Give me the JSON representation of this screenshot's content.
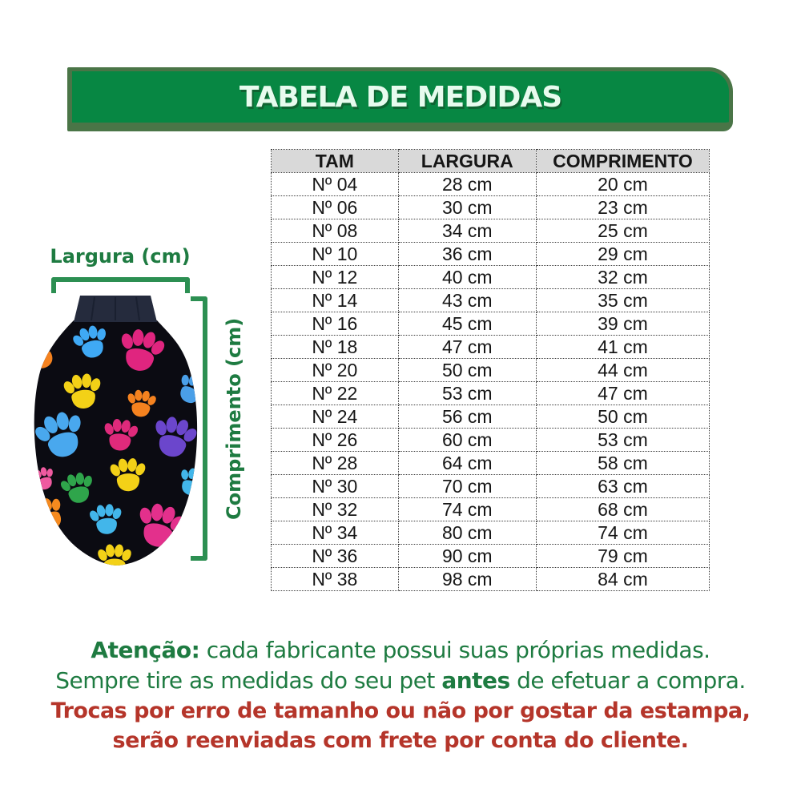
{
  "banner": {
    "title": "TABELA DE MEDIDAS"
  },
  "diagram": {
    "width_label": "Largura (cm)",
    "length_label": "Comprimento (cm)",
    "image_alt": "black fleece pet sweater with multicolor paw prints"
  },
  "size_chart": {
    "columns": [
      "TAM",
      "LARGURA",
      "COMPRIMENTO"
    ],
    "rows": [
      [
        "Nº 04",
        "28 cm",
        "20 cm"
      ],
      [
        "Nº 06",
        "30 cm",
        "23 cm"
      ],
      [
        "Nº 08",
        "34 cm",
        "25 cm"
      ],
      [
        "Nº 10",
        "36 cm",
        "29 cm"
      ],
      [
        "Nº 12",
        "40 cm",
        "32 cm"
      ],
      [
        "Nº 14",
        "43 cm",
        "35 cm"
      ],
      [
        "Nº 16",
        "45 cm",
        "39 cm"
      ],
      [
        "Nº 18",
        "47 cm",
        "41 cm"
      ],
      [
        "Nº 20",
        "50 cm",
        "44 cm"
      ],
      [
        "Nº 22",
        "53 cm",
        "47 cm"
      ],
      [
        "Nº 24",
        "56 cm",
        "50 cm"
      ],
      [
        "Nº 26",
        "60 cm",
        "53 cm"
      ],
      [
        "Nº 28",
        "64 cm",
        "58 cm"
      ],
      [
        "Nº 30",
        "70 cm",
        "63 cm"
      ],
      [
        "Nº 32",
        "74 cm",
        "68 cm"
      ],
      [
        "Nº 34",
        "80 cm",
        "74 cm"
      ],
      [
        "Nº 36",
        "90 cm",
        "79 cm"
      ],
      [
        "Nº 38",
        "98 cm",
        "84 cm"
      ]
    ]
  },
  "notes": {
    "attention_label": "Atenção:",
    "attention_text": " cada fabricante possui suas próprias medidas.",
    "measure_pre": "Sempre tire as medidas do seu pet ",
    "measure_bold": "antes",
    "measure_post": " de efetuar a compra.",
    "warning_line1": "Trocas por erro de tamanho ou não por gostar da estampa,",
    "warning_line2": "serão reenviadas com frete por conta do cliente."
  },
  "colors": {
    "banner_green": "#078743",
    "banner_border": "#4a7547",
    "banner_text": "#e7fbee",
    "note_green": "#1e7b41",
    "warning_red": "#b5352a",
    "bracket_green": "#2c8f52",
    "table_header_bg": "#d9d9d9",
    "paw_palette": [
      "#3fa9f5",
      "#e0257f",
      "#2fa54b",
      "#f5821f",
      "#f3d117",
      "#6b46cc",
      "#42b6ea",
      "#e3308c"
    ]
  }
}
